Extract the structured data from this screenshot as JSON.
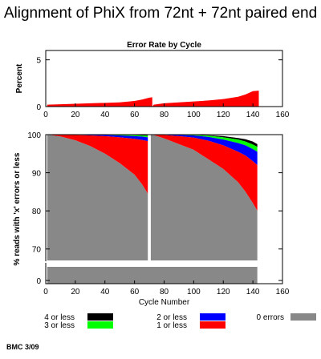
{
  "title": "Alignment of PhiX from 72nt + 72nt paired end",
  "footer": "BMC 3/09",
  "colors": {
    "error_rate": "#ff0000",
    "zero_errors": "#888888",
    "one_or_less": "#ff0000",
    "two_or_less": "#0000ff",
    "three_or_less": "#00ff00",
    "four_or_less": "#000000"
  },
  "chart_data": [
    {
      "type": "area",
      "title": "Error Rate by Cycle",
      "ylabel": "Percent",
      "xlabel": "",
      "xlim": [
        0,
        160
      ],
      "ylim": [
        0,
        6
      ],
      "x_ticks": [
        0,
        20,
        40,
        60,
        80,
        100,
        120,
        140,
        160
      ],
      "y_ticks": [
        0,
        5
      ],
      "series": [
        {
          "x": [
            1,
            10,
            20,
            30,
            40,
            50,
            60,
            65,
            70,
            72,
            73,
            80,
            90,
            100,
            110,
            120,
            130,
            135,
            140,
            144
          ],
          "values": [
            0.2,
            0.25,
            0.3,
            0.35,
            0.4,
            0.45,
            0.6,
            0.75,
            0.95,
            1.0,
            0.2,
            0.35,
            0.45,
            0.55,
            0.65,
            0.8,
            1.05,
            1.3,
            1.65,
            1.7
          ]
        }
      ]
    },
    {
      "type": "area",
      "ylabel": "% reads with 'x' errors or less",
      "xlabel": "Cycle Number",
      "xlim": [
        0,
        160
      ],
      "ylim": [
        0,
        100
      ],
      "y_axis_break": [
        0,
        67
      ],
      "x_ticks": [
        0,
        20,
        40,
        60,
        80,
        100,
        120,
        140,
        160
      ],
      "y_ticks": [
        0,
        70,
        80,
        90,
        100
      ],
      "x": [
        1,
        10,
        20,
        30,
        40,
        50,
        60,
        65,
        69,
        71,
        72,
        80,
        90,
        100,
        110,
        120,
        130,
        135,
        140,
        143
      ],
      "series": [
        {
          "name": "0 errors",
          "values": [
            100,
            99.5,
            98.5,
            97,
            95,
            92.5,
            89.5,
            87,
            84.5,
            100,
            100,
            99,
            97.5,
            96,
            93.5,
            91,
            87.5,
            85,
            82,
            80
          ]
        },
        {
          "name": "1 or less",
          "values": [
            100,
            100,
            99.9,
            99.8,
            99.6,
            99.3,
            98.9,
            98.6,
            98.3,
            100,
            100,
            99.9,
            99.6,
            99.2,
            98.4,
            97.2,
            95.5,
            94.5,
            93,
            92
          ]
        },
        {
          "name": "2 or less",
          "values": [
            100,
            100,
            100,
            99.95,
            99.9,
            99.8,
            99.6,
            99.5,
            99.3,
            100,
            100,
            100,
            99.9,
            99.8,
            99.4,
            98.7,
            97.8,
            97.2,
            96.2,
            95.5
          ]
        },
        {
          "name": "3 or less",
          "values": [
            100,
            100,
            100,
            100,
            99.97,
            99.93,
            99.85,
            99.78,
            99.7,
            100,
            100,
            100,
            99.96,
            99.9,
            99.7,
            99.3,
            98.7,
            98.2,
            97.4,
            96.8
          ]
        },
        {
          "name": "4 or less",
          "values": [
            100,
            100,
            100,
            100,
            100,
            99.98,
            99.95,
            99.92,
            99.88,
            100,
            100,
            100,
            99.99,
            99.95,
            99.85,
            99.6,
            99.1,
            98.8,
            98.2,
            97.5
          ]
        }
      ],
      "legend": [
        {
          "label": "4 or less",
          "color": "#000000"
        },
        {
          "label": "3 or less",
          "color": "#00ff00"
        },
        {
          "label": "2 or less",
          "color": "#0000ff"
        },
        {
          "label": "1 or less",
          "color": "#ff0000"
        },
        {
          "label": "0 errors",
          "color": "#888888"
        }
      ]
    }
  ]
}
